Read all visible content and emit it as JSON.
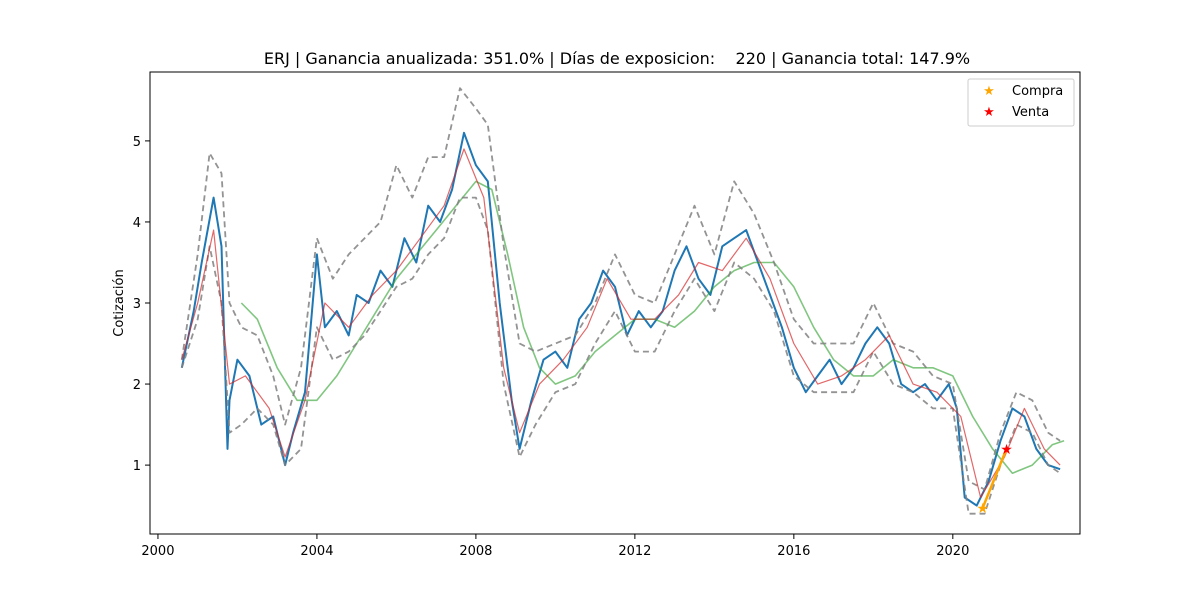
{
  "chart_data": {
    "type": "line",
    "title": "ERJ | Ganancia anualizada: 351.0% | Días de exposicion:    220 | Ganancia total: 147.9%",
    "xlabel": "",
    "ylabel": "Cotización",
    "xlim": [
      1999.8,
      2023.2
    ],
    "ylim": [
      0.15,
      5.85
    ],
    "x_ticks": [
      2000,
      2004,
      2008,
      2012,
      2016,
      2020
    ],
    "x_tick_labels": [
      "2000",
      "2004",
      "2008",
      "2012",
      "2016",
      "2020"
    ],
    "y_ticks": [
      1,
      2,
      3,
      4,
      5
    ],
    "y_tick_labels": [
      "1",
      "2",
      "3",
      "4",
      "5"
    ],
    "grid": false,
    "legend_position": "top-right",
    "legend": [
      {
        "label": "Compra",
        "color": "#ffa500",
        "marker": "star"
      },
      {
        "label": "Venta",
        "color": "#ff0000",
        "marker": "star"
      }
    ],
    "colors": {
      "price": "#1f77b4",
      "fast_ma": "#d62728",
      "slow_ma": "#2ca02c",
      "bands": "#808080",
      "trade": "#ffa500",
      "buy": "#ffa500",
      "sell": "#ff0000"
    },
    "series": [
      {
        "role": "price",
        "x": [
          2000.6,
          2000.9,
          2001.1,
          2001.4,
          2001.6,
          2001.75,
          2001.8,
          2002.0,
          2002.3,
          2002.6,
          2002.9,
          2003.2,
          2003.4,
          2003.7,
          2004.0,
          2004.2,
          2004.5,
          2004.8,
          2005.0,
          2005.3,
          2005.6,
          2005.9,
          2006.2,
          2006.5,
          2006.8,
          2007.1,
          2007.4,
          2007.7,
          2008.0,
          2008.3,
          2008.6,
          2008.9,
          2009.1,
          2009.4,
          2009.7,
          2010.0,
          2010.3,
          2010.6,
          2010.9,
          2011.2,
          2011.5,
          2011.8,
          2012.1,
          2012.4,
          2012.7,
          2013.0,
          2013.3,
          2013.6,
          2013.9,
          2014.2,
          2014.5,
          2014.8,
          2015.1,
          2015.4,
          2015.7,
          2016.0,
          2016.3,
          2016.6,
          2016.9,
          2017.2,
          2017.5,
          2017.8,
          2018.1,
          2018.4,
          2018.7,
          2019.0,
          2019.3,
          2019.6,
          2019.9,
          2020.1,
          2020.3,
          2020.6,
          2020.9,
          2021.2,
          2021.5,
          2021.8,
          2022.1,
          2022.4,
          2022.7
        ],
        "y": [
          2.2,
          2.9,
          3.5,
          4.3,
          3.7,
          1.2,
          1.8,
          2.3,
          2.1,
          1.5,
          1.6,
          1.0,
          1.4,
          1.9,
          3.6,
          2.7,
          2.9,
          2.6,
          3.1,
          3.0,
          3.4,
          3.2,
          3.8,
          3.5,
          4.2,
          4.0,
          4.4,
          5.1,
          4.7,
          4.5,
          3.0,
          1.8,
          1.2,
          1.8,
          2.3,
          2.4,
          2.2,
          2.8,
          3.0,
          3.4,
          3.2,
          2.6,
          2.9,
          2.7,
          2.9,
          3.4,
          3.7,
          3.3,
          3.1,
          3.7,
          3.8,
          3.9,
          3.5,
          3.1,
          2.7,
          2.2,
          1.9,
          2.1,
          2.3,
          2.0,
          2.2,
          2.5,
          2.7,
          2.5,
          2.0,
          1.9,
          2.0,
          1.8,
          2.0,
          1.7,
          0.6,
          0.5,
          0.8,
          1.3,
          1.7,
          1.6,
          1.2,
          1.0,
          0.95
        ]
      },
      {
        "role": "fast_ma",
        "x": [
          2000.6,
          2001.0,
          2001.4,
          2001.8,
          2002.2,
          2002.8,
          2003.2,
          2003.7,
          2004.2,
          2004.8,
          2005.4,
          2006.0,
          2006.6,
          2007.2,
          2007.7,
          2008.2,
          2008.7,
          2009.1,
          2009.6,
          2010.2,
          2010.8,
          2011.3,
          2011.9,
          2012.5,
          2013.1,
          2013.6,
          2014.2,
          2014.8,
          2015.4,
          2016.0,
          2016.6,
          2017.2,
          2017.8,
          2018.4,
          2019.0,
          2019.6,
          2020.2,
          2020.7,
          2021.3,
          2021.8,
          2022.3,
          2022.7
        ],
        "y": [
          2.3,
          3.0,
          3.9,
          2.0,
          2.1,
          1.7,
          1.1,
          1.8,
          3.0,
          2.7,
          3.1,
          3.4,
          3.8,
          4.2,
          4.9,
          4.3,
          2.2,
          1.4,
          2.0,
          2.3,
          2.7,
          3.3,
          2.8,
          2.8,
          3.1,
          3.5,
          3.4,
          3.8,
          3.3,
          2.5,
          2.0,
          2.1,
          2.3,
          2.6,
          2.0,
          1.9,
          1.6,
          0.6,
          1.1,
          1.7,
          1.2,
          1.0
        ]
      },
      {
        "role": "slow_ma",
        "x": [
          2002.1,
          2002.5,
          2003.0,
          2003.5,
          2004.0,
          2004.5,
          2005.0,
          2005.5,
          2006.0,
          2006.5,
          2007.0,
          2007.5,
          2008.0,
          2008.4,
          2008.8,
          2009.2,
          2009.6,
          2010.0,
          2010.5,
          2011.0,
          2011.5,
          2012.0,
          2012.5,
          2013.0,
          2013.5,
          2014.0,
          2014.5,
          2015.0,
          2015.5,
          2016.0,
          2016.5,
          2017.0,
          2017.5,
          2018.0,
          2018.5,
          2019.0,
          2019.5,
          2020.0,
          2020.5,
          2021.0,
          2021.5,
          2022.0,
          2022.5,
          2022.8
        ],
        "y": [
          3.0,
          2.8,
          2.2,
          1.8,
          1.8,
          2.1,
          2.5,
          2.9,
          3.3,
          3.6,
          3.9,
          4.2,
          4.5,
          4.4,
          3.6,
          2.7,
          2.2,
          2.0,
          2.1,
          2.4,
          2.6,
          2.8,
          2.8,
          2.7,
          2.9,
          3.2,
          3.4,
          3.5,
          3.5,
          3.2,
          2.7,
          2.3,
          2.1,
          2.1,
          2.3,
          2.2,
          2.2,
          2.1,
          1.6,
          1.2,
          0.9,
          1.0,
          1.25,
          1.3
        ]
      },
      {
        "role": "upper_band",
        "x": [
          2000.6,
          2001.0,
          2001.3,
          2001.6,
          2001.8,
          2002.1,
          2002.5,
          2002.9,
          2003.2,
          2003.6,
          2004.0,
          2004.4,
          2004.8,
          2005.2,
          2005.6,
          2006.0,
          2006.4,
          2006.8,
          2007.2,
          2007.6,
          2008.0,
          2008.3,
          2008.7,
          2009.1,
          2009.5,
          2010.0,
          2010.5,
          2011.0,
          2011.5,
          2012.0,
          2012.5,
          2013.0,
          2013.5,
          2014.0,
          2014.5,
          2015.0,
          2015.5,
          2016.0,
          2016.5,
          2017.0,
          2017.5,
          2018.0,
          2018.5,
          2019.0,
          2019.5,
          2020.0,
          2020.4,
          2020.8,
          2021.2,
          2021.6,
          2022.0,
          2022.4,
          2022.7
        ],
        "y": [
          2.3,
          3.6,
          4.85,
          4.6,
          3.0,
          2.7,
          2.6,
          2.1,
          1.5,
          2.2,
          3.8,
          3.3,
          3.6,
          3.8,
          4.0,
          4.7,
          4.3,
          4.8,
          4.8,
          5.65,
          5.4,
          5.2,
          3.7,
          2.5,
          2.4,
          2.5,
          2.6,
          3.0,
          3.6,
          3.1,
          3.0,
          3.6,
          4.2,
          3.6,
          4.5,
          4.1,
          3.5,
          2.8,
          2.5,
          2.5,
          2.5,
          3.0,
          2.5,
          2.4,
          2.1,
          2.0,
          0.8,
          0.7,
          1.4,
          1.9,
          1.8,
          1.4,
          1.3
        ]
      },
      {
        "role": "lower_band",
        "x": [
          2000.6,
          2001.0,
          2001.3,
          2001.6,
          2001.8,
          2002.1,
          2002.5,
          2002.9,
          2003.2,
          2003.6,
          2004.0,
          2004.4,
          2004.8,
          2005.2,
          2005.6,
          2006.0,
          2006.4,
          2006.8,
          2007.2,
          2007.6,
          2008.0,
          2008.3,
          2008.7,
          2009.1,
          2009.5,
          2010.0,
          2010.5,
          2011.0,
          2011.5,
          2012.0,
          2012.5,
          2013.0,
          2013.5,
          2014.0,
          2014.5,
          2015.0,
          2015.5,
          2016.0,
          2016.5,
          2017.0,
          2017.5,
          2018.0,
          2018.5,
          2019.0,
          2019.5,
          2020.0,
          2020.4,
          2020.8,
          2021.2,
          2021.6,
          2022.0,
          2022.4,
          2022.7
        ],
        "y": [
          2.2,
          2.8,
          3.7,
          3.0,
          1.4,
          1.5,
          1.7,
          1.5,
          1.0,
          1.2,
          2.7,
          2.3,
          2.4,
          2.6,
          2.9,
          3.2,
          3.3,
          3.6,
          3.8,
          4.3,
          4.3,
          3.9,
          2.0,
          1.1,
          1.5,
          1.9,
          2.0,
          2.5,
          2.9,
          2.4,
          2.4,
          2.9,
          3.3,
          2.9,
          3.5,
          3.3,
          2.9,
          2.1,
          1.9,
          1.9,
          1.9,
          2.4,
          2.0,
          1.9,
          1.7,
          1.7,
          0.4,
          0.4,
          1.0,
          1.5,
          1.4,
          1.0,
          0.9
        ]
      },
      {
        "role": "trade",
        "x": [
          2020.75,
          2021.35
        ],
        "y": [
          0.47,
          1.2
        ]
      }
    ],
    "points": [
      {
        "type": "buy",
        "x": 2020.75,
        "y": 0.47
      },
      {
        "type": "sell",
        "x": 2021.35,
        "y": 1.2
      }
    ]
  }
}
